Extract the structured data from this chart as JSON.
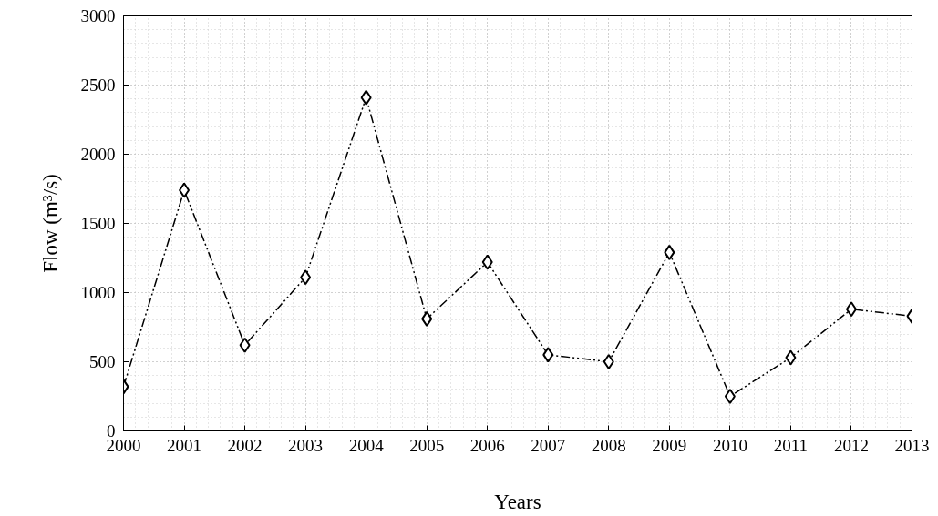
{
  "chart_data": {
    "type": "line",
    "xlabel": "Years",
    "ylabel": "Flow (m³/s)",
    "x": [
      2000,
      2001,
      2002,
      2003,
      2004,
      2005,
      2006,
      2007,
      2008,
      2009,
      2010,
      2011,
      2012,
      2013
    ],
    "series": [
      {
        "color": "#000000",
        "values": [
          320,
          1740,
          620,
          1110,
          2410,
          810,
          1220,
          550,
          500,
          1290,
          250,
          530,
          880,
          830
        ]
      }
    ],
    "xlim": [
      2000,
      2013
    ],
    "xticks": [
      2000,
      2001,
      2002,
      2003,
      2004,
      2005,
      2006,
      2007,
      2008,
      2009,
      2010,
      2011,
      2012,
      2013
    ],
    "ylim": [
      0,
      3000
    ],
    "yticks": [
      0,
      500,
      1000,
      1500,
      2000,
      2500,
      3000
    ],
    "grid": true,
    "marker": "diamond",
    "line_style": "dashed"
  }
}
